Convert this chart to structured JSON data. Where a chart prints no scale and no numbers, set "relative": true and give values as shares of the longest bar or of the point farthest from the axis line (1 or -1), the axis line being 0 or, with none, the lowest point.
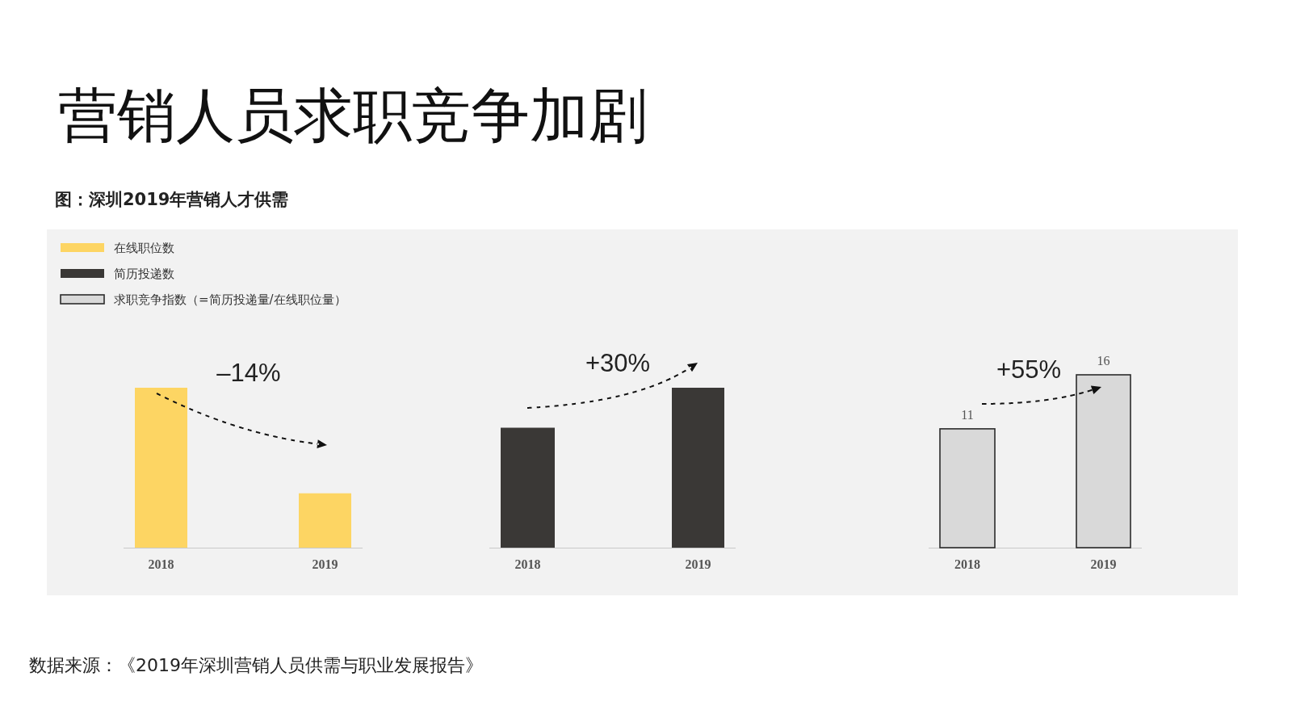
{
  "chart_data": [
    {
      "type": "bar",
      "title": "营销人员求职竞争加剧",
      "subtitle": "图：深圳2019年营销人才供需",
      "relative": true,
      "categories": [
        "2018",
        "2019"
      ],
      "series": [
        {
          "name": "在线职位数",
          "color": "#fdd563",
          "values": [
            1,
            0.34
          ]
        }
      ],
      "annotations": [
        "–14%",
        "数据来源：《2019年深圳营销人员供需与职业发展报告》"
      ],
      "legend": "top left"
    },
    {
      "type": "bar",
      "relative": true,
      "categories": [
        "2018",
        "2019"
      ],
      "series": [
        {
          "name": "简历投递数",
          "color": "#3a3836",
          "values": [
            0.75,
            1
          ]
        }
      ],
      "annotations": [
        "+30%"
      ],
      "legend": "top left"
    },
    {
      "type": "bar",
      "categories": [
        "2018",
        "2019"
      ],
      "series": [
        {
          "name": "求职竞争指数（=简历投递量/在线职位量）",
          "color": "#d9d9d9",
          "values": [
            11,
            16
          ]
        }
      ],
      "data_labels": true,
      "annotations": [
        "+55%"
      ],
      "legend": "top left"
    }
  ]
}
